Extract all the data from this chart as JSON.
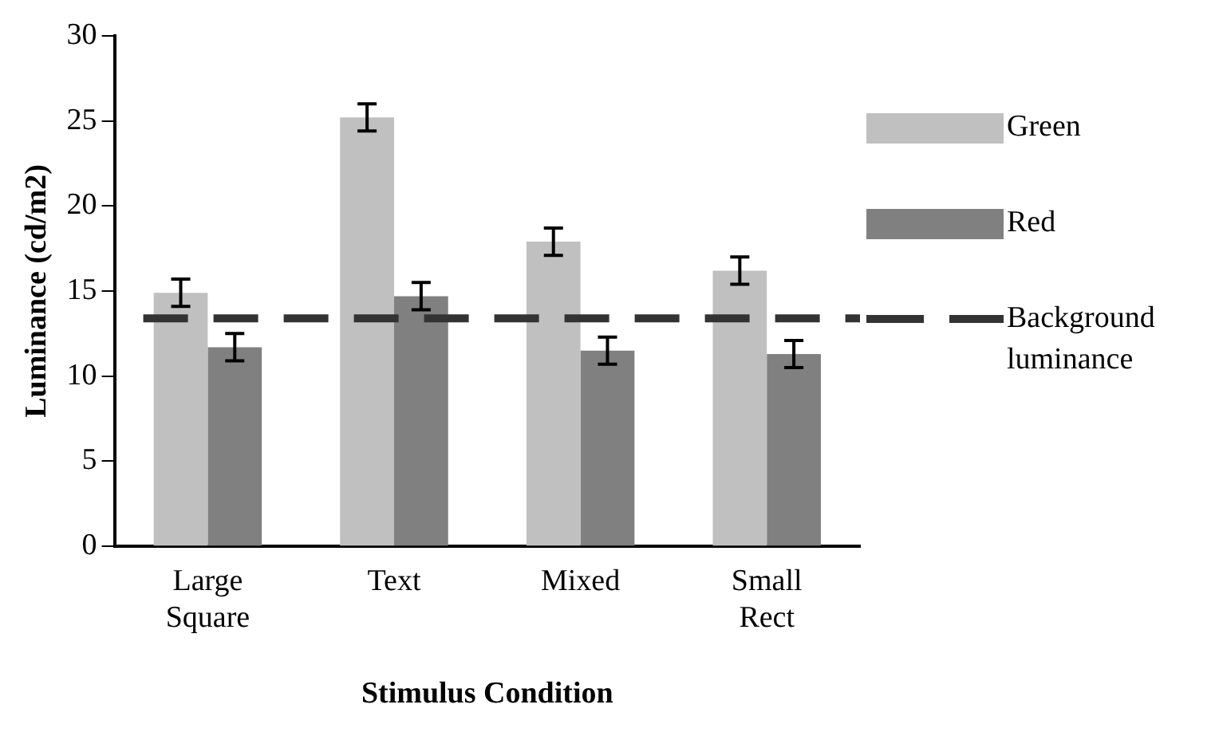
{
  "chart_data": {
    "type": "bar",
    "xlabel": "Stimulus Condition",
    "ylabel": "Luminance (cd/m2)",
    "categories": [
      "Large Square",
      "Text",
      "Mixed",
      "Small Rect"
    ],
    "series": [
      {
        "name": "Green",
        "color": "#c0c0c0",
        "values": [
          14.9,
          25.2,
          17.9,
          16.2
        ],
        "errors": [
          0.8,
          0.8,
          0.8,
          0.8
        ]
      },
      {
        "name": "Red",
        "color": "#808080",
        "values": [
          11.7,
          14.7,
          11.5,
          11.3
        ],
        "errors": [
          0.8,
          0.8,
          0.8,
          0.8
        ]
      }
    ],
    "ref_lines": [
      {
        "axis": "y",
        "value": 13.4,
        "label": "Background luminance",
        "color": "#333333",
        "line_style": "dashed"
      }
    ],
    "ylim": [
      0,
      30
    ],
    "yticks": [
      0,
      5,
      10,
      15,
      20,
      25,
      30
    ],
    "grid": false,
    "legend": "right"
  }
}
